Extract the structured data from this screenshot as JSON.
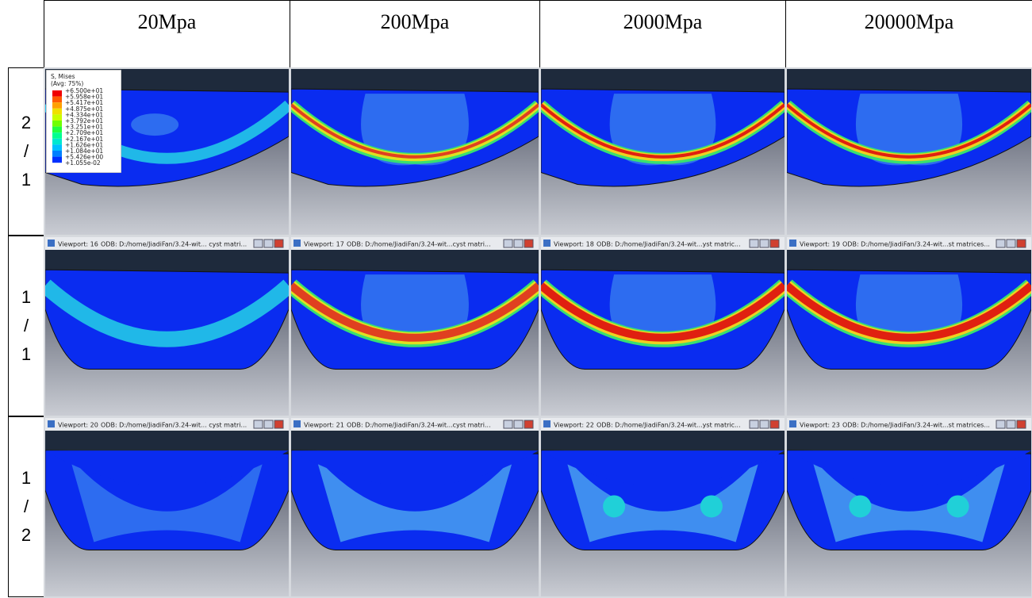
{
  "table": {
    "header": [
      "20Mpa",
      "200Mpa",
      "2000Mpa",
      "20000Mpa"
    ],
    "legend": {
      "title": "S, Mises",
      "subtitle": "(Avg: 75%)",
      "levels": [
        "+6.500e+01",
        "+5.958e+01",
        "+5.417e+01",
        "+4.875e+01",
        "+4.334e+01",
        "+3.792e+01",
        "+3.251e+01",
        "+2.709e+01",
        "+2.167e+01",
        "+1.626e+01",
        "+1.084e+01",
        "+5.426e+00",
        "+1.055e-02"
      ]
    },
    "rows": [
      {
        "label": [
          "2",
          "/",
          "1"
        ]
      },
      {
        "label": [
          "1",
          "/",
          "1"
        ],
        "viewports": [
          {
            "name": "Viewport: 16",
            "path": "ODB: D:/home/JiadiFan/3.24-wit... cyst matri..."
          },
          {
            "name": "Viewport: 17",
            "path": "ODB: D:/home/JiadiFan/3.24-wit...cyst matri..."
          },
          {
            "name": "Viewport: 18",
            "path": "ODB: D:/home/JiadiFan/3.24-wit...yst matric..."
          },
          {
            "name": "Viewport: 19",
            "path": "ODB: D:/home/JiadiFan/3.24-wit...st matrices..."
          }
        ]
      },
      {
        "label": [
          "1",
          "/",
          "2"
        ],
        "viewports": [
          {
            "name": "Viewport: 20",
            "path": "ODB: D:/home/JiadiFan/3.24-wit... cyst matri..."
          },
          {
            "name": "Viewport: 21",
            "path": "ODB: D:/home/JiadiFan/3.24-wit...cyst matri..."
          },
          {
            "name": "Viewport: 22",
            "path": "ODB: D:/home/JiadiFan/3.24-wit...yst matric..."
          },
          {
            "name": "Viewport: 23",
            "path": "ODB: D:/home/JiadiFan/3.24-wit...st matrices..."
          }
        ]
      }
    ]
  }
}
